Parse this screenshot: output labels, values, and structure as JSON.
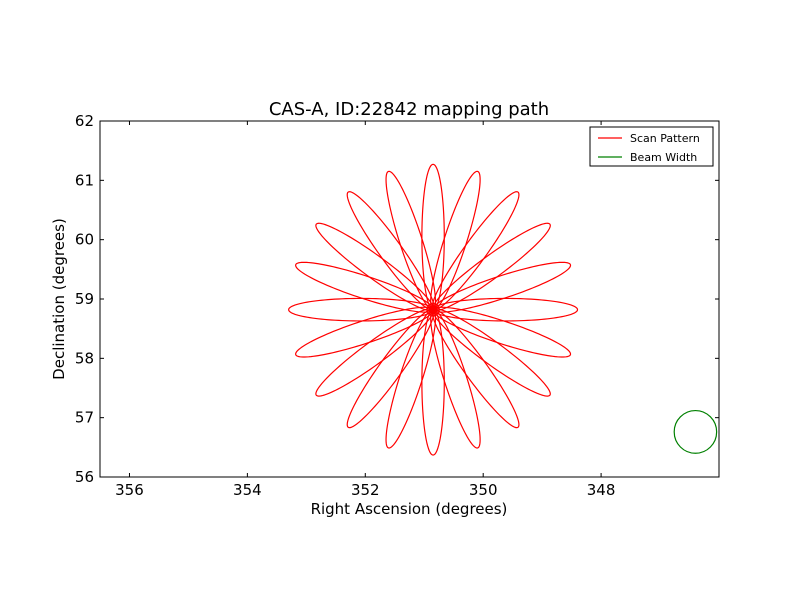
{
  "chart_data": {
    "type": "line",
    "title": "CAS-A, ID:22842 mapping path",
    "xlabel": "Right Ascension (degrees)",
    "ylabel": "Declination (degrees)",
    "xlim": [
      356.5,
      346.0
    ],
    "ylim": [
      56,
      62
    ],
    "x_ticks": [
      356,
      354,
      352,
      350,
      348
    ],
    "y_ticks": [
      56,
      57,
      58,
      59,
      60,
      61,
      62
    ],
    "grid": false,
    "legend_position": "top-right",
    "colors": {
      "scan": "#ff0000",
      "beam": "#008000"
    },
    "center": {
      "ra": 350.85,
      "dec": 58.82
    },
    "series": [
      {
        "name": "Scan Pattern",
        "kind": "rosette",
        "petals": 20,
        "petal_length_deg": 4.9,
        "petal_half_width_ratio": 0.155
      },
      {
        "name": "Beam Width",
        "kind": "circle",
        "center_ra": 346.4,
        "center_dec": 56.76,
        "radius_deg": 0.36
      }
    ]
  }
}
